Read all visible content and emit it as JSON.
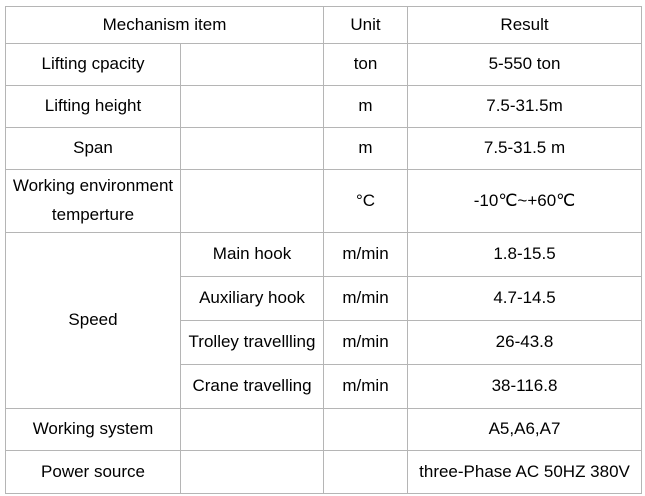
{
  "colors": {
    "border": "#b5b5b5",
    "text": "#000000",
    "background": "#ffffff"
  },
  "table": {
    "header": {
      "mechanism_item": "Mechanism item",
      "unit": "Unit",
      "result": "Result"
    },
    "rows": [
      {
        "item": "Lifting cpacity",
        "sub": "",
        "unit": "ton",
        "result": "5-550 ton"
      },
      {
        "item": "Lifting height",
        "sub": "",
        "unit": "m",
        "result": "7.5-31.5m"
      },
      {
        "item": "Span",
        "sub": "",
        "unit": "m",
        "result": "7.5-31.5 m"
      },
      {
        "item": "Working environment temperture",
        "sub": "",
        "unit": "°C",
        "result": "-10℃~+60℃"
      },
      {
        "item": "Speed",
        "sub": "Main hook",
        "unit": "m/min",
        "result": "1.8-15.5"
      },
      {
        "sub": "Auxiliary hook",
        "unit": "m/min",
        "result": "4.7-14.5"
      },
      {
        "sub": "Trolley travellling",
        "unit": "m/min",
        "result": "26-43.8"
      },
      {
        "sub": "Crane travelling",
        "unit": "m/min",
        "result": "38-116.8"
      },
      {
        "item": "Working system",
        "sub": "",
        "unit": "",
        "result": "A5,A6,A7"
      },
      {
        "item": "Power source",
        "sub": "",
        "unit": "",
        "result": "three-Phase AC 50HZ 380V"
      }
    ]
  }
}
